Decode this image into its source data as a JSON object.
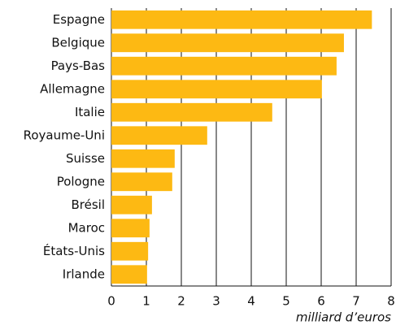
{
  "chart_data": {
    "type": "hbar",
    "categories": [
      "Espagne",
      "Belgique",
      "Pays-Bas",
      "Allemagne",
      "Italie",
      "Royaume-Uni",
      "Suisse",
      "Pologne",
      "Brésil",
      "Maroc",
      "États-Unis",
      "Irlande"
    ],
    "values": [
      7.45,
      6.65,
      6.44,
      6.02,
      4.6,
      2.74,
      1.81,
      1.74,
      1.16,
      1.09,
      1.05,
      1.02
    ],
    "color": "#fdb913",
    "xlim": [
      0,
      8
    ],
    "xticks": [
      0,
      1,
      2,
      3,
      4,
      5,
      6,
      7,
      8
    ],
    "grid": true,
    "x_label": "milliard d’euros"
  }
}
